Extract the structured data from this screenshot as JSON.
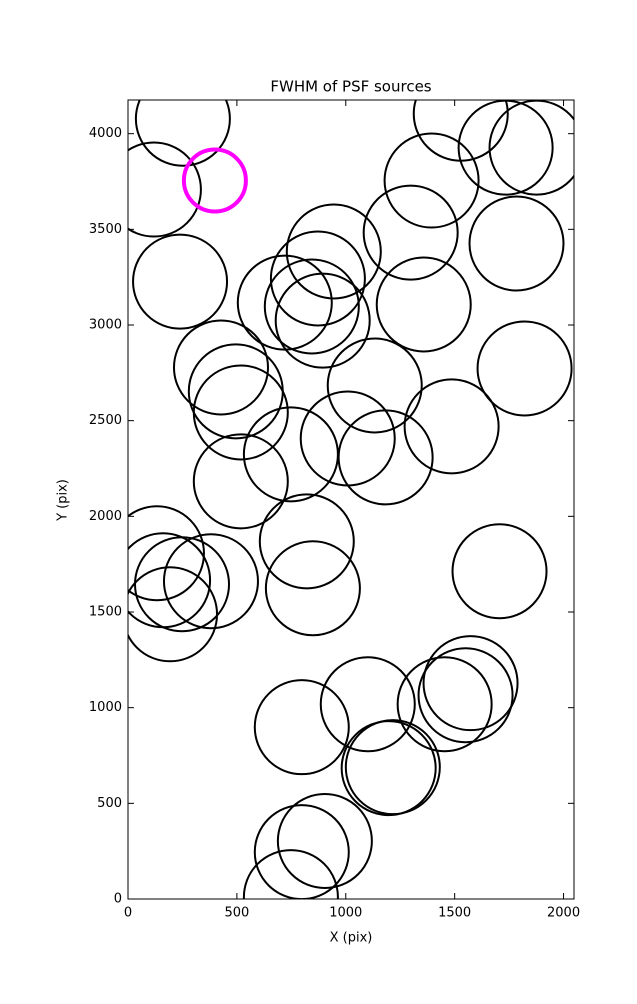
{
  "chart_data": {
    "type": "scatter",
    "title": "FWHM of PSF sources",
    "x_label": "X (pix)",
    "y_label": "Y (pix)",
    "xlim": [
      0,
      2048
    ],
    "ylim": [
      0,
      4176
    ],
    "xticks": [
      0,
      500,
      1000,
      1500,
      2000
    ],
    "yticks": [
      0,
      500,
      1000,
      1500,
      2000,
      2500,
      3000,
      3500,
      4000
    ],
    "grid": false,
    "series": [
      {
        "color": "#000000",
        "x": [
          252,
          119,
          239,
          1528,
          1734,
          1876,
          1394,
          1298,
          1784,
          945,
          872,
          1358,
          720,
          844,
          894,
          1821,
          427,
          495,
          518,
          1133,
          1486,
          1009,
          748,
          1183,
          518,
          821,
          133,
          161,
          248,
          381,
          193,
          849,
          1706,
          1573,
          1550,
          1454,
          1101,
          798,
          1216,
          1197,
          904,
          798,
          748
        ],
        "values": [
          4078,
          3708,
          3227,
          4104,
          3927,
          3927,
          3755,
          3483,
          3426,
          3384,
          3243,
          3107,
          3117,
          3097,
          3023,
          2773,
          2778,
          2653,
          2543,
          2684,
          2470,
          2407,
          2324,
          2308,
          2183,
          1869,
          1807,
          1666,
          1645,
          1661,
          1488,
          1624,
          1713,
          1128,
          1065,
          1018,
          1018,
          898,
          689,
          684,
          303,
          245,
          10
        ]
      },
      {
        "color": "#ff00ff",
        "x": [
          399
        ],
        "values": [
          3755
        ]
      }
    ]
  }
}
